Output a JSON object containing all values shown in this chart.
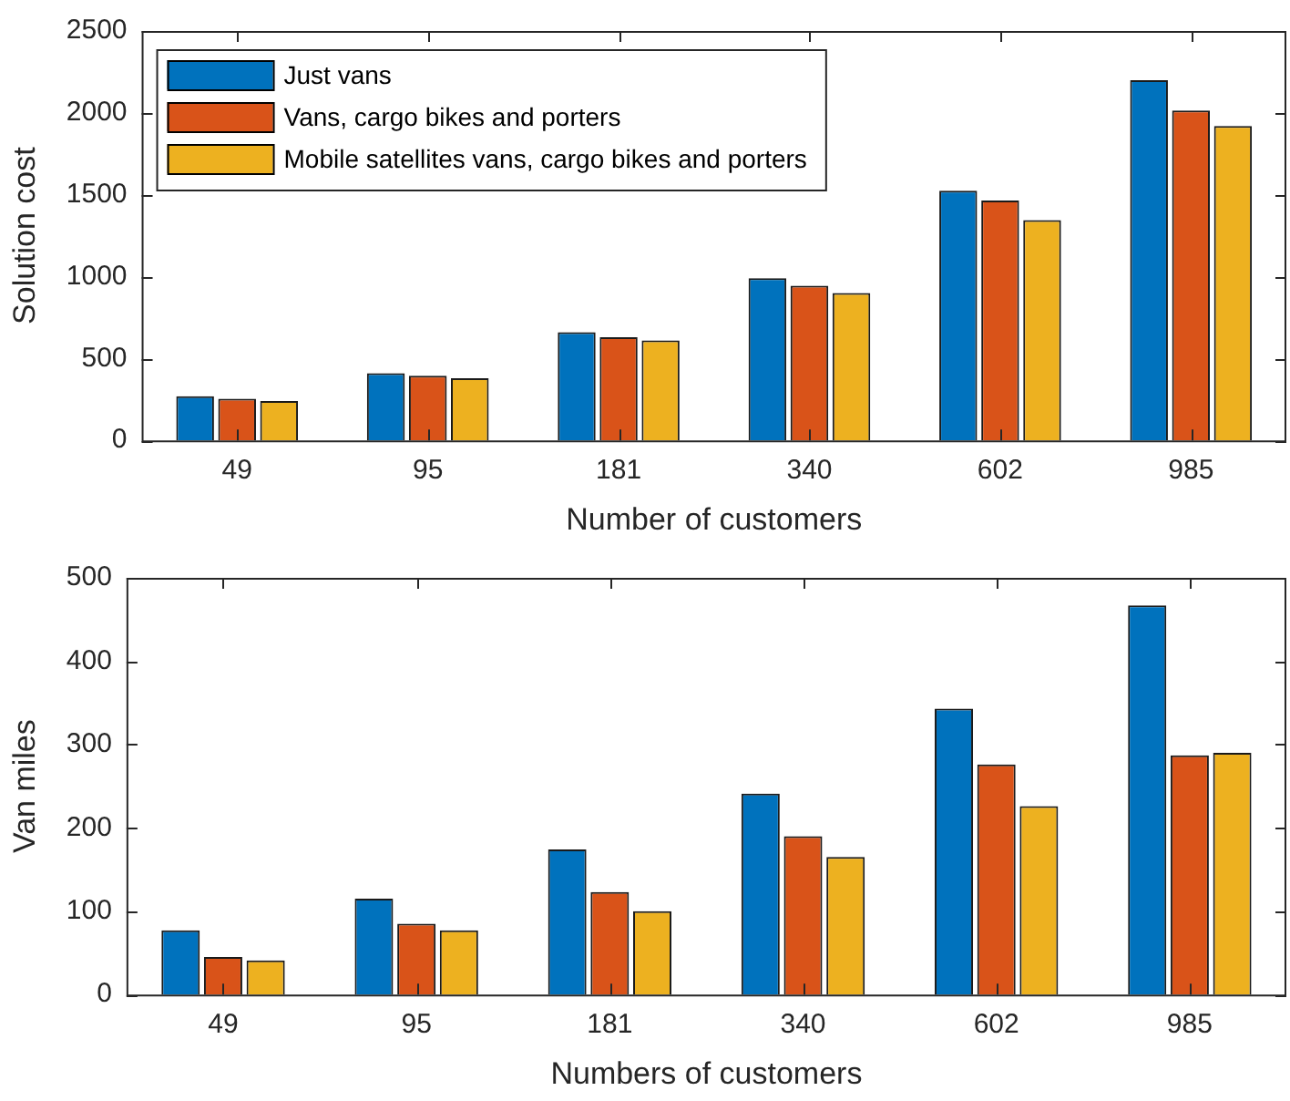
{
  "chart_data": [
    {
      "type": "bar",
      "categories": [
        "49",
        "95",
        "181",
        "340",
        "602",
        "985"
      ],
      "xlabel": "Number of customers",
      "ylabel": "Solution cost",
      "ylim": [
        0,
        2500
      ],
      "yticks": [
        0,
        500,
        1000,
        1500,
        2000,
        2500
      ],
      "grid": false,
      "legend": "top left",
      "series": [
        {
          "name": "Just vans",
          "color": "#0072bd",
          "values": [
            270,
            410,
            660,
            990,
            1525,
            2200
          ]
        },
        {
          "name": "Vans, cargo bikes and porters",
          "color": "#d95319",
          "values": [
            255,
            395,
            630,
            945,
            1465,
            2015
          ]
        },
        {
          "name": "Mobile satellites vans, cargo bikes and porters",
          "color": "#edb120",
          "values": [
            240,
            380,
            610,
            900,
            1345,
            1920
          ]
        }
      ]
    },
    {
      "type": "bar",
      "categories": [
        "49",
        "95",
        "181",
        "340",
        "602",
        "985"
      ],
      "xlabel": "Numbers of customers",
      "ylabel": "Van miles",
      "ylim": [
        0,
        500
      ],
      "yticks": [
        0,
        100,
        200,
        300,
        400,
        500
      ],
      "grid": false,
      "series": [
        {
          "color": "#0072bd",
          "values": [
            77,
            115,
            174,
            241,
            343,
            467
          ]
        },
        {
          "color": "#d95319",
          "values": [
            45,
            85,
            123,
            190,
            276,
            287
          ]
        },
        {
          "color": "#edb120",
          "values": [
            41,
            77,
            100,
            165,
            226,
            290
          ]
        }
      ]
    }
  ]
}
